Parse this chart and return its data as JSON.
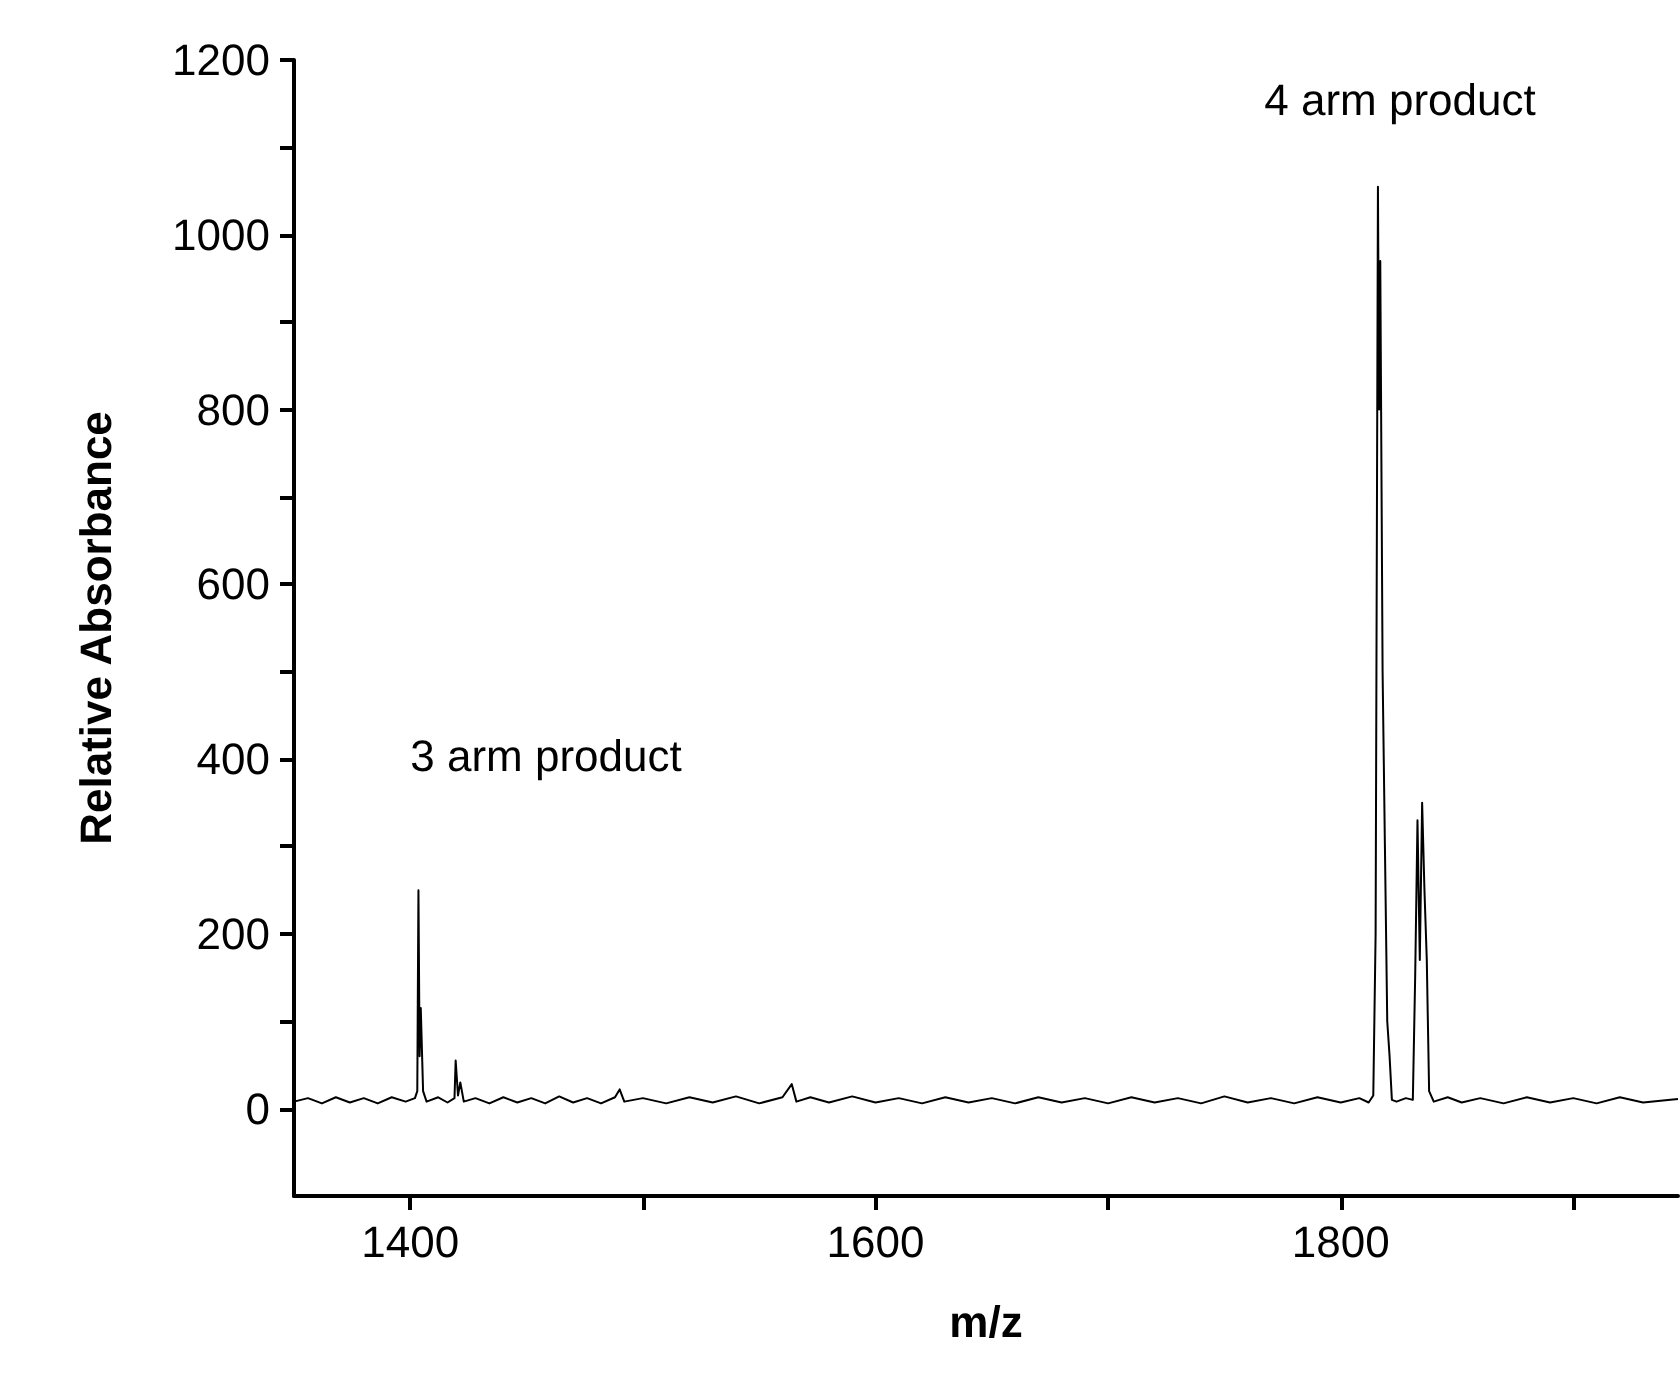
{
  "chart_data": {
    "type": "line",
    "xlabel": "m/z",
    "ylabel": "Relative Absorbance",
    "x": [
      1350,
      1356,
      1362,
      1368,
      1374,
      1380,
      1386,
      1392,
      1398,
      1402,
      1403,
      1403.5,
      1404,
      1404.5,
      1405.5,
      1407,
      1412,
      1416,
      1419,
      1419.5,
      1420.5,
      1421.5,
      1423,
      1428,
      1434,
      1440,
      1446,
      1452,
      1458,
      1464,
      1470,
      1476,
      1482,
      1488,
      1490,
      1492,
      1500,
      1510,
      1520,
      1530,
      1540,
      1550,
      1560,
      1564,
      1566,
      1572,
      1580,
      1590,
      1600,
      1610,
      1620,
      1630,
      1640,
      1650,
      1660,
      1670,
      1680,
      1690,
      1700,
      1710,
      1720,
      1730,
      1740,
      1750,
      1760,
      1770,
      1780,
      1790,
      1800,
      1808,
      1812,
      1814,
      1815,
      1816,
      1816.5,
      1817,
      1818,
      1819,
      1820,
      1821,
      1822,
      1824,
      1828,
      1831,
      1832,
      1833,
      1834,
      1835,
      1836,
      1837,
      1838,
      1840,
      1846,
      1852,
      1860,
      1870,
      1880,
      1890,
      1900,
      1910,
      1920,
      1930,
      1945
    ],
    "series": [
      {
        "color": "#000000",
        "values": [
          8,
          12,
          6,
          13,
          7,
          12,
          6,
          13,
          8,
          12,
          20,
          250,
          60,
          115,
          20,
          8,
          13,
          7,
          12,
          55,
          15,
          30,
          8,
          12,
          6,
          13,
          7,
          12,
          6,
          14,
          7,
          12,
          6,
          13,
          22,
          8,
          12,
          6,
          13,
          7,
          14,
          6,
          13,
          28,
          8,
          13,
          7,
          14,
          7,
          12,
          6,
          13,
          7,
          12,
          6,
          13,
          7,
          12,
          6,
          13,
          7,
          12,
          6,
          14,
          7,
          12,
          6,
          13,
          7,
          12,
          7,
          15,
          200,
          1055,
          800,
          970,
          500,
          300,
          100,
          60,
          10,
          8,
          12,
          10,
          150,
          330,
          170,
          350,
          250,
          170,
          20,
          8,
          13,
          7,
          12,
          6,
          13,
          7,
          12,
          6,
          13,
          7,
          11
        ]
      }
    ],
    "xlim": [
      1350,
      1945
    ],
    "ylim": [
      -100,
      1200
    ],
    "xticks": [
      1400,
      {
        "value": 1500,
        "label": null
      },
      1600,
      {
        "value": 1700,
        "label": null
      },
      1800,
      {
        "value": 1900,
        "label": null
      }
    ],
    "yticks": [
      0,
      {
        "value": 100,
        "label": null
      },
      200,
      {
        "value": 300,
        "label": null
      },
      400,
      {
        "value": 500,
        "label": null
      },
      600,
      {
        "value": 700,
        "label": null
      },
      800,
      {
        "value": 900,
        "label": null
      },
      1000,
      {
        "value": 1100,
        "label": null
      },
      1200
    ],
    "annotations": [
      "3 arm product",
      "4 arm product"
    ],
    "grid": false,
    "marker": "none",
    "line_style": "solid"
  }
}
